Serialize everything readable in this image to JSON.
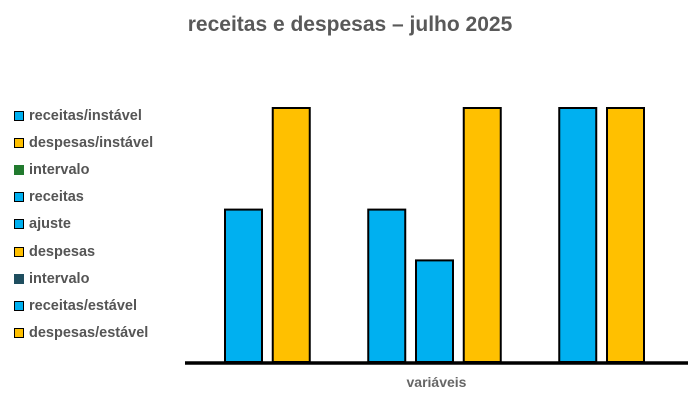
{
  "chart_data": {
    "type": "bar",
    "title": "receitas e despesas – julho 2025",
    "xlabel": "variáveis",
    "ylabel": "",
    "ylim": [
      0,
      5
    ],
    "grid": false,
    "legend_placement": "left",
    "series": [
      {
        "name": "receitas/instável",
        "value": 3,
        "color": "#00B0F0",
        "border": true
      },
      {
        "name": "despesas/instável",
        "value": 5,
        "color": "#FFC000",
        "border": true
      },
      {
        "name": "intervalo",
        "value": 0,
        "color": "#217A2E",
        "border": false
      },
      {
        "name": "receitas",
        "value": 3,
        "color": "#00B0F0",
        "border": true
      },
      {
        "name": "ajuste",
        "value": 2,
        "color": "#00B0F0",
        "border": true
      },
      {
        "name": "despesas",
        "value": 5,
        "color": "#FFC000",
        "border": true
      },
      {
        "name": "intervalo",
        "value": 0,
        "color": "#1F4E5F",
        "border": false
      },
      {
        "name": "receitas/estável",
        "value": 5,
        "color": "#00B0F0",
        "border": true
      },
      {
        "name": "despesas/estável",
        "value": 5,
        "color": "#FFC000",
        "border": true
      }
    ]
  }
}
